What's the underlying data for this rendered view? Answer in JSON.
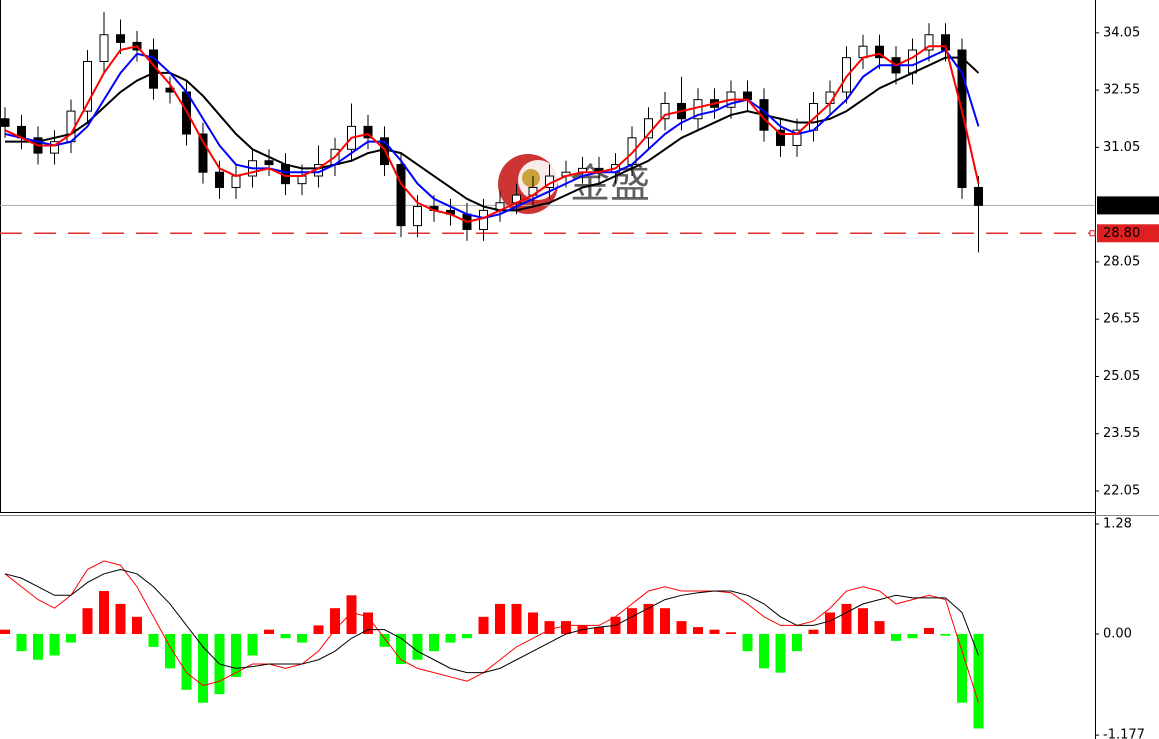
{
  "chart_data": [
    {
      "type": "candlestick",
      "ylim": [
        21.5,
        34.91
      ],
      "yticks": [
        22.05,
        23.55,
        25.05,
        26.55,
        28.05,
        31.05,
        32.55,
        34.05
      ],
      "open": [
        31.8,
        31.6,
        31.3,
        30.9,
        31.2,
        32.0,
        33.3,
        34.0,
        33.8,
        33.6,
        32.6,
        32.5,
        31.4,
        30.4,
        30.0,
        30.3,
        30.7,
        30.6,
        30.1,
        30.3,
        30.6,
        31.0,
        31.6,
        31.3,
        30.6,
        29.0,
        29.5,
        29.4,
        29.3,
        28.9,
        29.4,
        29.6,
        29.8,
        30.0,
        30.3,
        30.4,
        30.5,
        30.4,
        30.6,
        31.3,
        31.8,
        32.2,
        31.8,
        32.3,
        32.1,
        32.5,
        32.3,
        31.5,
        31.1,
        31.5,
        32.2,
        32.5,
        33.4,
        33.7,
        33.4,
        33.0,
        33.6,
        34.0,
        33.6,
        30.0
      ],
      "high": [
        32.1,
        31.9,
        31.6,
        31.5,
        32.3,
        33.6,
        34.6,
        34.4,
        34.1,
        33.9,
        32.9,
        32.8,
        31.7,
        30.7,
        30.6,
        31.0,
        31.0,
        30.9,
        30.6,
        31.1,
        31.3,
        32.2,
        31.9,
        31.6,
        30.9,
        29.8,
        29.8,
        29.7,
        29.6,
        29.7,
        29.9,
        30.1,
        30.3,
        30.6,
        30.7,
        30.8,
        30.8,
        30.9,
        31.6,
        32.1,
        32.5,
        32.9,
        32.6,
        32.6,
        32.8,
        32.8,
        32.6,
        31.8,
        31.8,
        32.5,
        32.8,
        33.7,
        34.0,
        34.0,
        33.7,
        33.9,
        34.3,
        34.3,
        33.9,
        30.3
      ],
      "low": [
        31.3,
        31.0,
        30.6,
        30.6,
        30.9,
        31.7,
        33.0,
        33.5,
        33.3,
        32.3,
        32.2,
        31.1,
        30.1,
        29.7,
        29.7,
        30.0,
        30.3,
        29.8,
        29.8,
        30.0,
        30.3,
        30.7,
        31.0,
        30.3,
        28.7,
        28.7,
        29.1,
        29.0,
        28.6,
        28.6,
        29.1,
        29.3,
        29.5,
        29.7,
        30.0,
        30.1,
        30.1,
        30.1,
        30.3,
        31.0,
        31.5,
        31.5,
        31.5,
        31.8,
        31.8,
        32.0,
        31.2,
        30.8,
        30.8,
        31.2,
        31.9,
        32.2,
        33.1,
        33.1,
        32.7,
        32.7,
        33.3,
        33.3,
        29.7,
        28.3
      ],
      "close": [
        31.6,
        31.3,
        30.9,
        31.2,
        32.0,
        33.3,
        34.0,
        33.8,
        33.6,
        32.6,
        32.5,
        31.4,
        30.4,
        30.0,
        30.3,
        30.7,
        30.6,
        30.1,
        30.3,
        30.6,
        31.0,
        31.6,
        31.3,
        30.6,
        29.0,
        29.5,
        29.4,
        29.3,
        28.9,
        29.4,
        29.6,
        29.8,
        30.0,
        30.3,
        30.4,
        30.5,
        30.4,
        30.6,
        31.3,
        31.8,
        32.2,
        31.8,
        32.3,
        32.1,
        32.5,
        32.3,
        31.5,
        31.1,
        31.5,
        32.2,
        32.5,
        33.4,
        33.7,
        33.4,
        33.0,
        33.6,
        34.0,
        33.6,
        30.0,
        29.53
      ],
      "lines": [
        {
          "color": "#000000",
          "values": [
            31.2,
            31.2,
            31.2,
            31.3,
            31.4,
            31.7,
            32.1,
            32.5,
            32.8,
            33.0,
            33.0,
            32.8,
            32.4,
            31.9,
            31.4,
            31.0,
            30.8,
            30.6,
            30.5,
            30.5,
            30.6,
            30.7,
            30.9,
            31.0,
            30.9,
            30.6,
            30.3,
            30.0,
            29.7,
            29.5,
            29.4,
            29.4,
            29.5,
            29.6,
            29.8,
            30.0,
            30.1,
            30.3,
            30.5,
            30.7,
            31.0,
            31.3,
            31.5,
            31.7,
            31.9,
            32.0,
            31.9,
            31.8,
            31.7,
            31.7,
            31.8,
            32.0,
            32.3,
            32.6,
            32.8,
            33.0,
            33.2,
            33.4,
            33.4,
            33.0
          ]
        },
        {
          "color": "#0000ff",
          "values": [
            31.4,
            31.3,
            31.2,
            31.1,
            31.2,
            31.6,
            32.3,
            33.0,
            33.5,
            33.4,
            33.0,
            32.5,
            31.8,
            31.1,
            30.6,
            30.5,
            30.5,
            30.4,
            30.4,
            30.4,
            30.6,
            30.9,
            31.2,
            31.2,
            30.7,
            30.1,
            29.7,
            29.5,
            29.3,
            29.2,
            29.3,
            29.5,
            29.7,
            29.9,
            30.1,
            30.3,
            30.4,
            30.4,
            30.6,
            31.0,
            31.4,
            31.7,
            31.9,
            32.0,
            32.2,
            32.3,
            32.0,
            31.6,
            31.4,
            31.5,
            31.9,
            32.3,
            32.9,
            33.2,
            33.2,
            33.2,
            33.4,
            33.6,
            33.0,
            31.6
          ]
        },
        {
          "color": "#ff0000",
          "values": [
            31.5,
            31.3,
            31.1,
            31.1,
            31.4,
            32.2,
            33.0,
            33.6,
            33.7,
            33.2,
            32.7,
            32.0,
            31.2,
            30.5,
            30.3,
            30.4,
            30.5,
            30.3,
            30.3,
            30.5,
            30.8,
            31.3,
            31.4,
            31.0,
            30.1,
            29.6,
            29.4,
            29.3,
            29.1,
            29.2,
            29.4,
            29.6,
            29.8,
            30.1,
            30.3,
            30.4,
            30.4,
            30.5,
            30.9,
            31.4,
            31.9,
            32.0,
            32.1,
            32.2,
            32.3,
            32.3,
            31.8,
            31.4,
            31.4,
            31.8,
            32.2,
            32.9,
            33.4,
            33.5,
            33.2,
            33.4,
            33.7,
            33.7,
            32.0,
            30.1
          ]
        }
      ],
      "current_price": 29.53,
      "level": {
        "value": 28.8,
        "label": "28.80"
      },
      "watermark": "金盛"
    },
    {
      "type": "macd",
      "ylim": [
        -1.199,
        1.373
      ],
      "yticks": [
        1.28,
        {
          "value": 0,
          "label": "0.00"
        },
        -1.177
      ],
      "positive_color": "#ff0000",
      "negative_color": "#00ff00",
      "histogram": [
        0.05,
        -0.2,
        -0.3,
        -0.25,
        -0.1,
        0.3,
        0.5,
        0.35,
        0.2,
        -0.15,
        -0.4,
        -0.65,
        -0.8,
        -0.7,
        -0.5,
        -0.25,
        0.05,
        -0.05,
        -0.1,
        0.1,
        0.3,
        0.45,
        0.25,
        -0.15,
        -0.35,
        -0.3,
        -0.2,
        -0.1,
        -0.05,
        0.2,
        0.35,
        0.35,
        0.25,
        0.15,
        0.15,
        0.1,
        0.08,
        0.2,
        0.3,
        0.35,
        0.3,
        0.15,
        0.08,
        0.05,
        0.02,
        -0.2,
        -0.4,
        -0.45,
        -0.2,
        0.05,
        0.25,
        0.35,
        0.3,
        0.15,
        -0.08,
        -0.05,
        0.07,
        -0.02,
        -0.8,
        -1.1
      ],
      "lines": [
        {
          "color": "#ff0000",
          "values": [
            0.7,
            0.55,
            0.4,
            0.3,
            0.45,
            0.75,
            0.85,
            0.8,
            0.55,
            0.2,
            -0.15,
            -0.45,
            -0.6,
            -0.55,
            -0.45,
            -0.35,
            -0.35,
            -0.4,
            -0.35,
            -0.2,
            0.05,
            0.25,
            0.2,
            -0.05,
            -0.3,
            -0.4,
            -0.45,
            -0.5,
            -0.55,
            -0.45,
            -0.3,
            -0.15,
            -0.05,
            0.05,
            0.1,
            0.1,
            0.1,
            0.2,
            0.35,
            0.5,
            0.55,
            0.5,
            0.5,
            0.5,
            0.48,
            0.35,
            0.2,
            0.1,
            0.1,
            0.15,
            0.3,
            0.5,
            0.55,
            0.5,
            0.35,
            0.4,
            0.45,
            0.4,
            -0.2,
            -0.8
          ]
        },
        {
          "color": "#000000",
          "values": [
            0.7,
            0.65,
            0.55,
            0.45,
            0.45,
            0.6,
            0.7,
            0.75,
            0.7,
            0.55,
            0.35,
            0.1,
            -0.15,
            -0.35,
            -0.4,
            -0.38,
            -0.35,
            -0.35,
            -0.35,
            -0.3,
            -0.2,
            -0.05,
            0.05,
            0.05,
            -0.05,
            -0.2,
            -0.3,
            -0.4,
            -0.45,
            -0.45,
            -0.4,
            -0.3,
            -0.2,
            -0.1,
            0.0,
            0.05,
            0.08,
            0.1,
            0.2,
            0.3,
            0.4,
            0.45,
            0.48,
            0.5,
            0.5,
            0.45,
            0.35,
            0.2,
            0.1,
            0.1,
            0.15,
            0.25,
            0.35,
            0.4,
            0.45,
            0.42,
            0.42,
            0.42,
            0.25,
            -0.25
          ]
        }
      ]
    }
  ]
}
